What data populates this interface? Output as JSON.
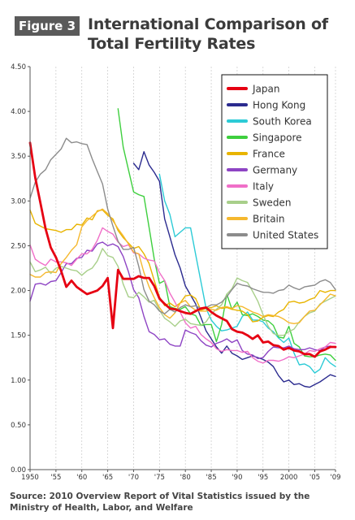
{
  "figure_label": "Figure 3",
  "title_line1": "International Comparison of",
  "title_line2": "Total Fertility Rates",
  "source": "Source: 2010 Overview Report of Vital Statistics issued by the Ministry of Health, Labor, and Welfare",
  "chart_data": {
    "type": "line",
    "title": "International Comparison of Total Fertility Rates",
    "xlim": [
      1950,
      2009
    ],
    "ylim": [
      0,
      4.5
    ],
    "x_ticks": [
      1950,
      1955,
      1960,
      1965,
      1970,
      1975,
      1980,
      1985,
      1990,
      1995,
      2000,
      2005,
      2009
    ],
    "x_tick_labels": [
      "1950",
      "'55",
      "'60",
      "'65",
      "'70",
      "'75",
      "'80",
      "'85",
      "'90",
      "'95",
      "2000",
      "'05",
      "'09"
    ],
    "y_ticks": [
      0,
      0.5,
      1,
      1.5,
      2,
      2.5,
      3,
      3.5,
      4,
      4.5
    ],
    "y_tick_labels": [
      "0.00",
      "0.50",
      "1.00",
      "1.50",
      "2.00",
      "2.50",
      "3.00",
      "3.50",
      "4.00",
      "4.50"
    ],
    "grid": {
      "vertical": true,
      "horizontal": false
    },
    "legend_position": "top-right",
    "series": [
      {
        "name": "Japan",
        "color": "#e60012",
        "x": [
          1950,
          1951,
          1952,
          1953,
          1954,
          1955,
          1956,
          1957,
          1958,
          1959,
          1960,
          1961,
          1962,
          1963,
          1964,
          1965,
          1966,
          1967,
          1968,
          1969,
          1970,
          1971,
          1972,
          1973,
          1974,
          1975,
          1976,
          1977,
          1978,
          1979,
          1980,
          1981,
          1982,
          1983,
          1984,
          1985,
          1986,
          1987,
          1988,
          1989,
          1990,
          1991,
          1992,
          1993,
          1994,
          1995,
          1996,
          1997,
          1998,
          1999,
          2000,
          2001,
          2002,
          2003,
          2004,
          2005,
          2006,
          2007,
          2008,
          2009
        ],
        "y": [
          3.65,
          3.26,
          2.98,
          2.69,
          2.48,
          2.37,
          2.22,
          2.04,
          2.11,
          2.04,
          2.0,
          1.96,
          1.98,
          2.0,
          2.05,
          2.14,
          1.58,
          2.23,
          2.13,
          2.13,
          2.13,
          2.16,
          2.14,
          2.14,
          2.05,
          1.91,
          1.85,
          1.8,
          1.79,
          1.77,
          1.75,
          1.74,
          1.77,
          1.8,
          1.81,
          1.76,
          1.72,
          1.69,
          1.66,
          1.57,
          1.54,
          1.53,
          1.5,
          1.46,
          1.5,
          1.42,
          1.43,
          1.39,
          1.38,
          1.34,
          1.36,
          1.33,
          1.32,
          1.29,
          1.29,
          1.26,
          1.32,
          1.34,
          1.37,
          1.37
        ]
      },
      {
        "name": "Hong Kong",
        "color": "#2b2b8f",
        "x": [
          1970,
          1971,
          1972,
          1973,
          1974,
          1975,
          1976,
          1977,
          1978,
          1979,
          1980,
          1981,
          1982,
          1983,
          1984,
          1985,
          1986,
          1987,
          1988,
          1989,
          1990,
          1991,
          1992,
          1993,
          1994,
          1995,
          1996,
          1997,
          1998,
          1999,
          2000,
          2001,
          2002,
          2003,
          2004,
          2005,
          2006,
          2007,
          2008,
          2009
        ],
        "y": [
          3.42,
          3.35,
          3.55,
          3.4,
          3.32,
          3.22,
          2.8,
          2.6,
          2.4,
          2.25,
          2.05,
          1.95,
          1.85,
          1.7,
          1.55,
          1.46,
          1.37,
          1.3,
          1.38,
          1.3,
          1.27,
          1.23,
          1.25,
          1.27,
          1.25,
          1.23,
          1.2,
          1.15,
          1.05,
          0.98,
          1.0,
          0.95,
          0.96,
          0.93,
          0.92,
          0.95,
          0.98,
          1.02,
          1.06,
          1.04
        ]
      },
      {
        "name": "South Korea",
        "color": "#2ccbd6",
        "x": [
          1975,
          1976,
          1977,
          1978,
          1979,
          1980,
          1981,
          1982,
          1983,
          1984,
          1985,
          1986,
          1987,
          1988,
          1989,
          1990,
          1991,
          1992,
          1993,
          1994,
          1995,
          1996,
          1997,
          1998,
          1999,
          2000,
          2001,
          2002,
          2003,
          2004,
          2005,
          2006,
          2007,
          2008,
          2009
        ],
        "y": [
          3.3,
          3.0,
          2.85,
          2.6,
          2.65,
          2.7,
          2.7,
          2.4,
          2.1,
          1.8,
          1.67,
          1.6,
          1.55,
          1.56,
          1.58,
          1.6,
          1.71,
          1.76,
          1.67,
          1.67,
          1.65,
          1.58,
          1.54,
          1.47,
          1.42,
          1.47,
          1.3,
          1.17,
          1.18,
          1.15,
          1.08,
          1.12,
          1.25,
          1.19,
          1.15
        ]
      },
      {
        "name": "Singapore",
        "color": "#3ecf3e",
        "x": [
          1967,
          1968,
          1969,
          1970,
          1971,
          1972,
          1973,
          1974,
          1975,
          1976,
          1977,
          1978,
          1979,
          1980,
          1981,
          1982,
          1983,
          1984,
          1985,
          1986,
          1987,
          1988,
          1989,
          1990,
          1991,
          1992,
          1993,
          1994,
          1995,
          1996,
          1997,
          1998,
          1999,
          2000,
          2001,
          2002,
          2003,
          2004,
          2005,
          2006,
          2007,
          2008,
          2009
        ],
        "y": [
          4.03,
          3.6,
          3.35,
          3.1,
          3.07,
          3.05,
          2.7,
          2.35,
          2.08,
          2.11,
          1.82,
          1.8,
          1.79,
          1.82,
          1.74,
          1.72,
          1.61,
          1.62,
          1.62,
          1.43,
          1.62,
          1.96,
          1.79,
          1.87,
          1.73,
          1.72,
          1.74,
          1.71,
          1.67,
          1.66,
          1.61,
          1.48,
          1.47,
          1.6,
          1.41,
          1.37,
          1.27,
          1.26,
          1.26,
          1.28,
          1.29,
          1.28,
          1.22
        ]
      },
      {
        "name": "France",
        "color": "#e8b400",
        "x": [
          1950,
          1951,
          1952,
          1953,
          1954,
          1955,
          1956,
          1957,
          1958,
          1959,
          1960,
          1961,
          1962,
          1963,
          1964,
          1965,
          1966,
          1967,
          1968,
          1969,
          1970,
          1971,
          1972,
          1973,
          1974,
          1975,
          1976,
          1977,
          1978,
          1979,
          1980,
          1981,
          1982,
          1983,
          1984,
          1985,
          1986,
          1987,
          1988,
          1989,
          1990,
          1991,
          1992,
          1993,
          1994,
          1995,
          1996,
          1997,
          1998,
          1999,
          2000,
          2001,
          2002,
          2003,
          2004,
          2005,
          2006,
          2007,
          2008,
          2009
        ],
        "y": [
          2.9,
          2.75,
          2.72,
          2.69,
          2.68,
          2.67,
          2.65,
          2.68,
          2.68,
          2.74,
          2.73,
          2.81,
          2.79,
          2.89,
          2.9,
          2.84,
          2.8,
          2.67,
          2.59,
          2.53,
          2.47,
          2.49,
          2.41,
          2.3,
          2.11,
          1.93,
          1.83,
          1.86,
          1.82,
          1.86,
          1.94,
          1.95,
          1.91,
          1.78,
          1.8,
          1.81,
          1.83,
          1.8,
          1.81,
          1.79,
          1.78,
          1.77,
          1.73,
          1.65,
          1.66,
          1.7,
          1.72,
          1.71,
          1.76,
          1.79,
          1.87,
          1.88,
          1.86,
          1.87,
          1.9,
          1.92,
          2.0,
          1.98,
          2.0,
          2.0
        ]
      },
      {
        "name": "Germany",
        "color": "#8e44c4",
        "x": [
          1950,
          1951,
          1952,
          1953,
          1954,
          1955,
          1956,
          1957,
          1958,
          1959,
          1960,
          1961,
          1962,
          1963,
          1964,
          1965,
          1966,
          1967,
          1968,
          1969,
          1970,
          1971,
          1972,
          1973,
          1974,
          1975,
          1976,
          1977,
          1978,
          1979,
          1980,
          1981,
          1982,
          1983,
          1984,
          1985,
          1986,
          1987,
          1988,
          1989,
          1990,
          1991,
          1992,
          1993,
          1994,
          1995,
          1996,
          1997,
          1998,
          1999,
          2000,
          2001,
          2002,
          2003,
          2004,
          2005,
          2006,
          2007,
          2008,
          2009
        ],
        "y": [
          1.88,
          2.07,
          2.08,
          2.06,
          2.1,
          2.11,
          2.2,
          2.3,
          2.3,
          2.36,
          2.37,
          2.45,
          2.44,
          2.52,
          2.54,
          2.5,
          2.52,
          2.49,
          2.38,
          2.21,
          2.01,
          1.92,
          1.71,
          1.54,
          1.51,
          1.45,
          1.46,
          1.4,
          1.38,
          1.38,
          1.56,
          1.53,
          1.51,
          1.44,
          1.39,
          1.37,
          1.41,
          1.43,
          1.46,
          1.42,
          1.45,
          1.33,
          1.29,
          1.28,
          1.24,
          1.25,
          1.32,
          1.37,
          1.36,
          1.36,
          1.38,
          1.35,
          1.34,
          1.34,
          1.36,
          1.34,
          1.33,
          1.37,
          1.38,
          1.36
        ]
      },
      {
        "name": "Italy",
        "color": "#f06fc8",
        "x": [
          1950,
          1951,
          1952,
          1953,
          1954,
          1955,
          1956,
          1957,
          1958,
          1959,
          1960,
          1961,
          1962,
          1963,
          1964,
          1965,
          1966,
          1967,
          1968,
          1969,
          1970,
          1971,
          1972,
          1973,
          1974,
          1975,
          1976,
          1977,
          1978,
          1979,
          1980,
          1981,
          1982,
          1983,
          1984,
          1985,
          1986,
          1987,
          1988,
          1989,
          1990,
          1991,
          1992,
          1993,
          1994,
          1995,
          1996,
          1997,
          1998,
          1999,
          2000,
          2001,
          2002,
          2003,
          2004,
          2005,
          2006,
          2007,
          2008,
          2009
        ],
        "y": [
          2.51,
          2.35,
          2.31,
          2.28,
          2.35,
          2.32,
          2.32,
          2.31,
          2.28,
          2.35,
          2.41,
          2.41,
          2.46,
          2.56,
          2.7,
          2.66,
          2.63,
          2.54,
          2.49,
          2.51,
          2.42,
          2.41,
          2.36,
          2.34,
          2.33,
          2.2,
          2.11,
          1.97,
          1.87,
          1.76,
          1.64,
          1.58,
          1.6,
          1.51,
          1.46,
          1.42,
          1.35,
          1.32,
          1.34,
          1.33,
          1.33,
          1.31,
          1.32,
          1.25,
          1.21,
          1.19,
          1.22,
          1.22,
          1.21,
          1.23,
          1.26,
          1.25,
          1.27,
          1.29,
          1.33,
          1.32,
          1.35,
          1.37,
          1.42,
          1.41
        ]
      },
      {
        "name": "Sweden",
        "color": "#a8cf8a",
        "x": [
          1950,
          1951,
          1952,
          1953,
          1954,
          1955,
          1956,
          1957,
          1958,
          1959,
          1960,
          1961,
          1962,
          1963,
          1964,
          1965,
          1966,
          1967,
          1968,
          1969,
          1970,
          1971,
          1972,
          1973,
          1974,
          1975,
          1976,
          1977,
          1978,
          1979,
          1980,
          1981,
          1982,
          1983,
          1984,
          1985,
          1986,
          1987,
          1988,
          1989,
          1990,
          1991,
          1992,
          1993,
          1994,
          1995,
          1996,
          1997,
          1998,
          1999,
          2000,
          2001,
          2002,
          2003,
          2004,
          2005,
          2006,
          2007,
          2008,
          2009
        ],
        "y": [
          2.32,
          2.21,
          2.23,
          2.26,
          2.19,
          2.25,
          2.27,
          2.25,
          2.23,
          2.22,
          2.17,
          2.22,
          2.25,
          2.33,
          2.47,
          2.39,
          2.37,
          2.27,
          2.07,
          1.93,
          1.92,
          1.98,
          1.93,
          1.87,
          1.89,
          1.78,
          1.69,
          1.65,
          1.6,
          1.66,
          1.68,
          1.63,
          1.62,
          1.61,
          1.65,
          1.74,
          1.79,
          1.84,
          1.96,
          2.02,
          2.14,
          2.11,
          2.09,
          1.99,
          1.88,
          1.73,
          1.6,
          1.52,
          1.5,
          1.5,
          1.54,
          1.57,
          1.65,
          1.71,
          1.75,
          1.77,
          1.85,
          1.88,
          1.91,
          1.94
        ]
      },
      {
        "name": "Britain",
        "color": "#f5b82e",
        "x": [
          1950,
          1951,
          1952,
          1953,
          1954,
          1955,
          1956,
          1957,
          1958,
          1959,
          1960,
          1961,
          1962,
          1963,
          1964,
          1965,
          1966,
          1967,
          1968,
          1969,
          1970,
          1971,
          1972,
          1973,
          1974,
          1975,
          1976,
          1977,
          1978,
          1979,
          1980,
          1981,
          1982,
          1983,
          1984,
          1985,
          1986,
          1987,
          1988,
          1989,
          1990,
          1991,
          1992,
          1993,
          1994,
          1995,
          1996,
          1997,
          1998,
          1999,
          2000,
          2001,
          2002,
          2003,
          2004,
          2005,
          2006,
          2007,
          2008,
          2009
        ],
        "y": [
          2.18,
          2.15,
          2.15,
          2.2,
          2.21,
          2.2,
          2.3,
          2.37,
          2.45,
          2.51,
          2.71,
          2.78,
          2.83,
          2.88,
          2.91,
          2.86,
          2.78,
          2.69,
          2.61,
          2.52,
          2.43,
          2.41,
          2.2,
          2.04,
          1.92,
          1.81,
          1.73,
          1.69,
          1.75,
          1.86,
          1.89,
          1.82,
          1.78,
          1.77,
          1.77,
          1.79,
          1.78,
          1.81,
          1.82,
          1.8,
          1.83,
          1.82,
          1.79,
          1.76,
          1.74,
          1.71,
          1.73,
          1.72,
          1.71,
          1.68,
          1.64,
          1.63,
          1.64,
          1.71,
          1.77,
          1.78,
          1.84,
          1.9,
          1.96,
          1.94
        ]
      },
      {
        "name": "United States",
        "color": "#8c8c8c",
        "x": [
          1950,
          1951,
          1952,
          1953,
          1954,
          1955,
          1956,
          1957,
          1958,
          1959,
          1960,
          1961,
          1962,
          1963,
          1964,
          1965,
          1966,
          1967,
          1968,
          1969,
          1970,
          1971,
          1972,
          1973,
          1974,
          1975,
          1976,
          1977,
          1978,
          1979,
          1980,
          1981,
          1982,
          1983,
          1984,
          1985,
          1986,
          1987,
          1988,
          1989,
          1990,
          1991,
          1992,
          1993,
          1994,
          1995,
          1996,
          1997,
          1998,
          1999,
          2000,
          2001,
          2002,
          2003,
          2004,
          2005,
          2006,
          2007,
          2008,
          2009
        ],
        "y": [
          3.03,
          3.21,
          3.3,
          3.35,
          3.46,
          3.52,
          3.58,
          3.7,
          3.65,
          3.66,
          3.64,
          3.63,
          3.47,
          3.33,
          3.19,
          2.91,
          2.72,
          2.55,
          2.46,
          2.46,
          2.48,
          2.27,
          2.01,
          1.88,
          1.84,
          1.77,
          1.74,
          1.79,
          1.76,
          1.81,
          1.84,
          1.82,
          1.83,
          1.8,
          1.81,
          1.84,
          1.84,
          1.87,
          1.93,
          2.01,
          2.08,
          2.06,
          2.05,
          2.02,
          2.0,
          1.98,
          1.98,
          1.97,
          2.0,
          2.01,
          2.06,
          2.03,
          2.01,
          2.04,
          2.05,
          2.06,
          2.1,
          2.12,
          2.09,
          2.01
        ]
      }
    ]
  }
}
